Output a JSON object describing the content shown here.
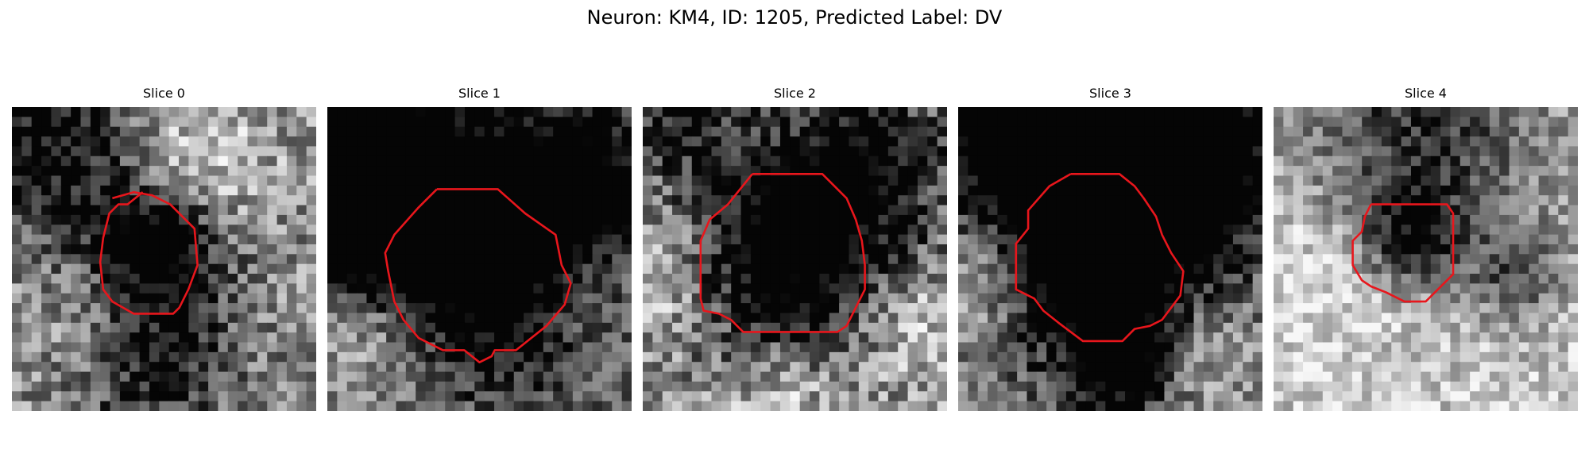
{
  "figure": {
    "title": "Neuron: KM4, ID: 1205, Predicted Label: DV"
  },
  "panels": [
    {
      "title": "Slice 0"
    },
    {
      "title": "Slice 1"
    },
    {
      "title": "Slice 2"
    },
    {
      "title": "Slice 3"
    },
    {
      "title": "Slice 4"
    }
  ],
  "colors": {
    "contour": "#e8161c",
    "background": "#ffffff"
  }
}
